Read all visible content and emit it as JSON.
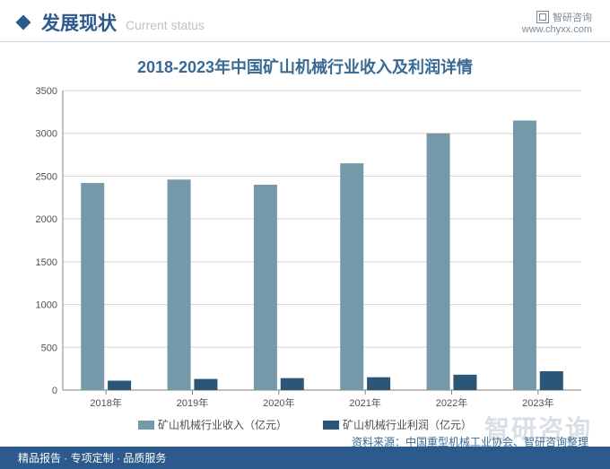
{
  "header": {
    "title_cn": "发展现状",
    "title_en": "Current status",
    "brand": "智研咨询",
    "website": "www.chyxx.com"
  },
  "chart": {
    "type": "bar",
    "title": "2018-2023年中国矿山机械行业收入及利润详情",
    "categories": [
      "2018年",
      "2019年",
      "2020年",
      "2021年",
      "2022年",
      "2023年"
    ],
    "series": [
      {
        "name": "矿山机械行业收入（亿元）",
        "color": "#7699aa",
        "values": [
          2420,
          2460,
          2400,
          2650,
          3000,
          3150
        ]
      },
      {
        "name": "矿山机械行业利润（亿元）",
        "color": "#2b5678",
        "values": [
          110,
          130,
          140,
          150,
          180,
          220
        ]
      }
    ],
    "ylim": [
      0,
      3500
    ],
    "ytick_step": 500,
    "label_fontsize": 11,
    "title_fontsize": 18,
    "grid_color": "#d5d5d5",
    "axis_color": "#808080",
    "background_color": "#ffffff",
    "bar_group_width": 0.58,
    "bar_gap": 0.04
  },
  "source_line": "资料来源：中国重型机械工业协会、智研咨询整理",
  "watermark": "智研咨询",
  "footer": "精品报告 · 专项定制 · 品质服务"
}
